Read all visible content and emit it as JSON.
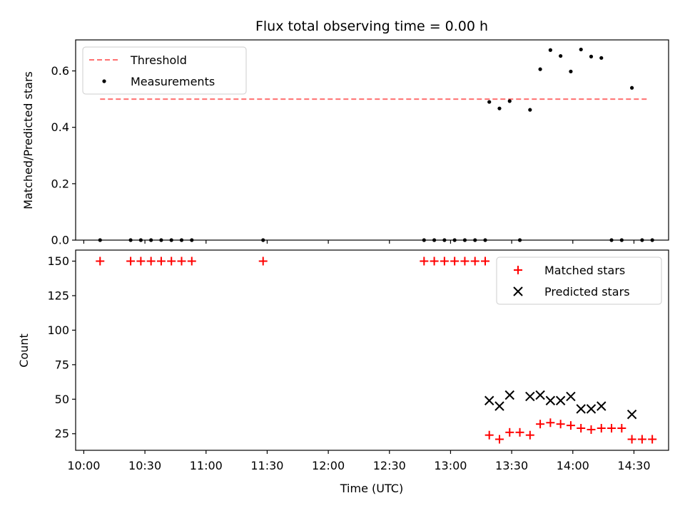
{
  "chart_data": [
    {
      "type": "scatter",
      "title": "Flux total observing time = 0.00 h",
      "xlabel": "",
      "ylabel": "Matched/Predicted stars",
      "xlim": [
        "09:56",
        "14:47"
      ],
      "ylim": [
        0,
        0.71
      ],
      "yticks": [
        0.0,
        0.2,
        0.4,
        0.6
      ],
      "ytick_labels": [
        "0.0",
        "0.2",
        "0.4",
        "0.6"
      ],
      "xticks": [
        "10:00",
        "10:30",
        "11:00",
        "11:30",
        "12:00",
        "12:30",
        "13:00",
        "13:30",
        "14:00",
        "14:30"
      ],
      "show_xtick_labels": false,
      "grid": false,
      "legend_position": "top-left",
      "threshold": {
        "name": "Threshold",
        "value": 0.5,
        "x_start": "10:08",
        "x_end": "14:37",
        "color": "#ff7070"
      },
      "series": [
        {
          "name": "Measurements",
          "color": "#000000",
          "x": [
            "10:08",
            "10:23",
            "10:28",
            "10:33",
            "10:38",
            "10:43",
            "10:48",
            "10:53",
            "11:28",
            "12:47",
            "12:52",
            "12:57",
            "13:02",
            "13:07",
            "13:12",
            "13:17",
            "13:19",
            "13:24",
            "13:29",
            "13:34",
            "13:39",
            "13:44",
            "13:49",
            "13:54",
            "13:59",
            "14:04",
            "14:09",
            "14:14",
            "14:19",
            "14:24",
            "14:29",
            "14:34",
            "14:39"
          ],
          "y": [
            0,
            0,
            0,
            0,
            0,
            0,
            0,
            0,
            0,
            0,
            0,
            0,
            0,
            0,
            0,
            0,
            0.49,
            0.467,
            0.493,
            0,
            0.462,
            0.606,
            0.674,
            0.653,
            0.598,
            0.676,
            0.651,
            0.646,
            0,
            0,
            0.54,
            0,
            0
          ]
        }
      ]
    },
    {
      "type": "scatter",
      "title": "",
      "xlabel": "Time (UTC)",
      "ylabel": "Count",
      "xlim": [
        "09:56",
        "14:47"
      ],
      "ylim": [
        13,
        158
      ],
      "yticks": [
        25,
        50,
        75,
        100,
        125,
        150
      ],
      "ytick_labels": [
        "25",
        "50",
        "75",
        "100",
        "125",
        "150"
      ],
      "xticks": [
        "10:00",
        "10:30",
        "11:00",
        "11:30",
        "12:00",
        "12:30",
        "13:00",
        "13:30",
        "14:00",
        "14:30"
      ],
      "xtick_labels": [
        "10:00",
        "10:30",
        "11:00",
        "11:30",
        "12:00",
        "12:30",
        "13:00",
        "13:30",
        "14:00",
        "14:30"
      ],
      "grid": false,
      "legend_position": "top-right",
      "series": [
        {
          "name": "Matched stars",
          "marker": "plus",
          "color": "#ff0000",
          "x": [
            "10:08",
            "10:23",
            "10:28",
            "10:33",
            "10:38",
            "10:43",
            "10:48",
            "10:53",
            "11:28",
            "12:47",
            "12:52",
            "12:57",
            "13:02",
            "13:07",
            "13:12",
            "13:17",
            "13:19",
            "13:24",
            "13:29",
            "13:34",
            "13:39",
            "13:44",
            "13:49",
            "13:54",
            "13:59",
            "14:04",
            "14:09",
            "14:14",
            "14:19",
            "14:24",
            "14:29",
            "14:34",
            "14:39"
          ],
          "y": [
            150,
            150,
            150,
            150,
            150,
            150,
            150,
            150,
            150,
            150,
            150,
            150,
            150,
            150,
            150,
            150,
            24,
            21,
            26,
            26,
            24,
            32,
            33,
            32,
            31,
            29,
            28,
            29,
            29,
            29,
            21,
            21,
            21
          ]
        },
        {
          "name": "Predicted stars",
          "marker": "x",
          "color": "#000000",
          "x": [
            "13:19",
            "13:24",
            "13:29",
            "13:39",
            "13:44",
            "13:49",
            "13:54",
            "13:59",
            "14:04",
            "14:09",
            "14:14",
            "14:29"
          ],
          "y": [
            49,
            45,
            53,
            52,
            53,
            49,
            49,
            52,
            43,
            43,
            45,
            39
          ]
        }
      ]
    }
  ]
}
